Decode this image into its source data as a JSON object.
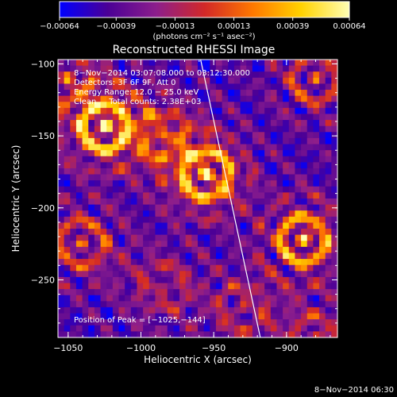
{
  "chart_data": {
    "type": "heatmap",
    "title": "Reconstructed RHESSI Image",
    "xlabel": "Heliocentric X (arcsec)",
    "ylabel": "Heliocentric Y (arcsec)",
    "xlim": [
      -1057,
      -865
    ],
    "ylim": [
      -290,
      -97
    ],
    "x_ticks": [
      -1050,
      -1000,
      -950,
      -900
    ],
    "x_tick_labels": [
      "−1050",
      "−1000",
      "−950",
      "−900"
    ],
    "y_ticks": [
      -100,
      -150,
      -200,
      -250
    ],
    "y_tick_labels": [
      "−100",
      "−150",
      "−200",
      "−250"
    ],
    "colorbar": {
      "min": -0.00064,
      "max": 0.00064,
      "ticks": [
        -0.00064,
        -0.00039,
        -0.00013,
        0.00013,
        0.00039,
        0.00064
      ],
      "tick_labels": [
        "−0.00064",
        "−0.00039",
        "−0.00013",
        "0.00013",
        "0.00039",
        "0.00064"
      ],
      "unit_label": "(photons cm⁻² s⁻¹ asec⁻²)",
      "colors": [
        "#0000ff",
        "#4b0096",
        "#8c1e8c",
        "#d22828",
        "#ff7800",
        "#ffd200",
        "#ffffb4"
      ]
    },
    "annotations": [
      "8−Nov−2014 03:07:08.000 to 03:12:30.000",
      "Detectors: 3F 6F 9F, Att 0",
      "Energy Range: 12.0 − 25.0 keV",
      "Clean     Total counts: 2.38E+03"
    ],
    "peak_label": "Position of Peak = [−1025,−144]",
    "peak": [
      -1025,
      -144
    ],
    "limb_line": [
      [
        -959,
        -97
      ],
      [
        -918,
        -290
      ]
    ],
    "sources": [
      {
        "x": -1025,
        "y": -144,
        "amp": 1.0
      },
      {
        "x": -955,
        "y": -177,
        "amp": 1.0
      },
      {
        "x": -888,
        "y": -222,
        "amp": 0.85
      },
      {
        "x": -985,
        "y": -150,
        "amp": 0.55
      },
      {
        "x": -1040,
        "y": -225,
        "amp": 0.55
      },
      {
        "x": -880,
        "y": -110,
        "amp": 0.5
      },
      {
        "x": -880,
        "y": -290,
        "amp": 0.45
      },
      {
        "x": -930,
        "y": -270,
        "amp": 0.4
      },
      {
        "x": -985,
        "y": -255,
        "amp": 0.4
      },
      {
        "x": -1050,
        "y": -110,
        "amp": 0.45
      }
    ]
  },
  "footer_timestamp": "8−Nov−2014 06:30"
}
